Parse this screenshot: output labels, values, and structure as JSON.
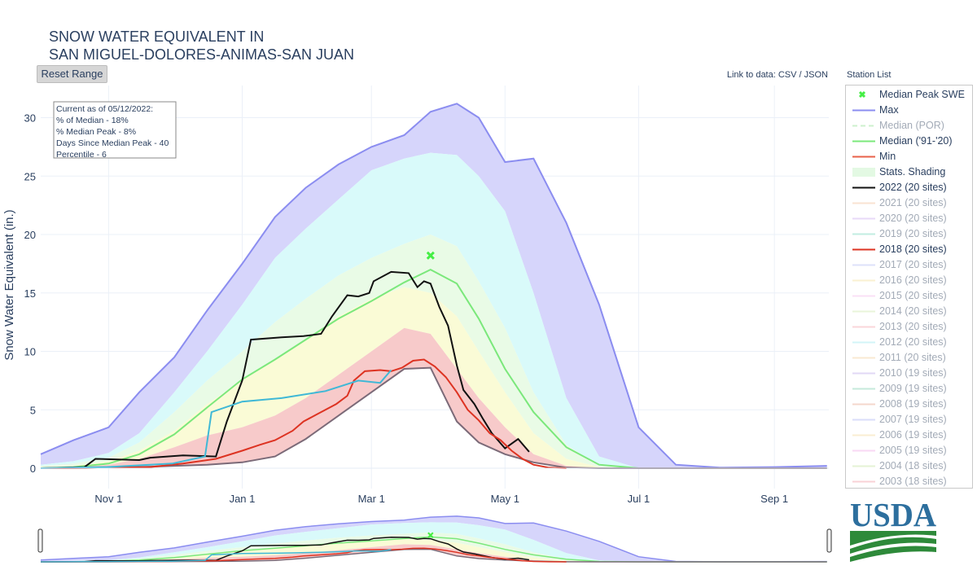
{
  "title_lines": [
    "SNOW WATER EQUIVALENT IN",
    "SAN MIGUEL-DOLORES-ANIMAS-SAN JUAN"
  ],
  "reset_label": "Reset Range",
  "data_link": {
    "prefix": "Link to data: ",
    "csv": "CSV",
    "sep": " / ",
    "json": "JSON"
  },
  "station_list_label": "Station List",
  "annotation": [
    "Current as of 05/12/2022:",
    "% of Median - 18%",
    "% Median Peak - 8%",
    "Days Since Median Peak - 40",
    "Percentile - 6"
  ],
  "logo_text": "USDA",
  "legend": [
    {
      "label": "Median Peak SWE",
      "symbol": "x",
      "color": "#44ee44",
      "visible": true
    },
    {
      "label": "Max",
      "symbol": "line",
      "color": "#8b8df0",
      "visible": true
    },
    {
      "label": "Median (POR)",
      "symbol": "dash",
      "color": "#9be59b",
      "visible": false
    },
    {
      "label": "Median ('91-'20)",
      "symbol": "line",
      "color": "#7be87b",
      "visible": true
    },
    {
      "label": "Min",
      "symbol": "line",
      "color": "#e8604a",
      "visible": true
    },
    {
      "label": "Stats. Shading",
      "symbol": "fill",
      "color": "#e3f9e3",
      "visible": true
    },
    {
      "label": "2022 (20 sites)",
      "symbol": "line",
      "color": "#111111",
      "visible": true
    },
    {
      "label": "2021 (20 sites)",
      "symbol": "line",
      "color": "#f6c9a6",
      "visible": false
    },
    {
      "label": "2020 (20 sites)",
      "symbol": "line",
      "color": "#d2b6f2",
      "visible": false
    },
    {
      "label": "2019 (20 sites)",
      "symbol": "line",
      "color": "#86dcc4",
      "visible": false
    },
    {
      "label": "2018 (20 sites)",
      "symbol": "line",
      "color": "#dd3322",
      "visible": true
    },
    {
      "label": "2017 (20 sites)",
      "symbol": "line",
      "color": "#bfc6f7",
      "visible": false
    },
    {
      "label": "2016 (20 sites)",
      "symbol": "line",
      "color": "#f7e2a6",
      "visible": false
    },
    {
      "label": "2015 (20 sites)",
      "symbol": "line",
      "color": "#f7c2ee",
      "visible": false
    },
    {
      "label": "2014 (20 sites)",
      "symbol": "line",
      "color": "#d7edb6",
      "visible": false
    },
    {
      "label": "2013 (20 sites)",
      "symbol": "line",
      "color": "#f7aeb6",
      "visible": false
    },
    {
      "label": "2012 (20 sites)",
      "symbol": "line",
      "color": "#a6eaf2",
      "visible": false
    },
    {
      "label": "2011 (20 sites)",
      "symbol": "line",
      "color": "#f7d2a6",
      "visible": false
    },
    {
      "label": "2010 (19 sites)",
      "symbol": "line",
      "color": "#c6b2ee",
      "visible": false
    },
    {
      "label": "2009 (19 sites)",
      "symbol": "line",
      "color": "#8ed6b8",
      "visible": false
    },
    {
      "label": "2008 (19 sites)",
      "symbol": "line",
      "color": "#eab09a",
      "visible": false
    },
    {
      "label": "2007 (19 sites)",
      "symbol": "line",
      "color": "#b6bcf7",
      "visible": false
    },
    {
      "label": "2006 (19 sites)",
      "symbol": "line",
      "color": "#f7dea6",
      "visible": false
    },
    {
      "label": "2005 (19 sites)",
      "symbol": "line",
      "color": "#f2b2ea",
      "visible": false
    },
    {
      "label": "2004 (18 sites)",
      "symbol": "line",
      "color": "#cde8aa",
      "visible": false
    },
    {
      "label": "2003 (18 sites)",
      "symbol": "line",
      "color": "#f4a6ae",
      "visible": false
    }
  ],
  "chart_data": {
    "type": "area",
    "title": "SNOW WATER EQUIVALENT IN SAN MIGUEL-DOLORES-ANIMAS-SAN JUAN",
    "xlabel": "",
    "ylabel": "Snow Water Equivalent (in.)",
    "x_unit": "date (water year Oct 1 - Sep 30)",
    "xlim": [
      "Oct 1",
      "Sep 30"
    ],
    "ylim": [
      -0.3,
      32.5
    ],
    "x_ticks": [
      {
        "label": "Nov 1",
        "day": 31
      },
      {
        "label": "Jan 1",
        "day": 92
      },
      {
        "label": "Mar 1",
        "day": 151
      },
      {
        "label": "May 1",
        "day": 212
      },
      {
        "label": "Jul 1",
        "day": 273
      },
      {
        "label": "Sep 1",
        "day": 335
      }
    ],
    "y_ticks": [
      0,
      5,
      10,
      15,
      20,
      25,
      30
    ],
    "grid": true,
    "legend_position": "right",
    "colors": {
      "max_fill": "#d6d5fb",
      "max_line": "#8b8df0",
      "band_high_fill": "#d9fafa",
      "band_mid_fill": "#e9fbe6",
      "band_mid_low_fill": "#fafbd6",
      "band_low_fill": "#f7caca",
      "median": "#7be87b",
      "min": "#7b6a78",
      "y2022": "#111111",
      "y2018": "#dd3322",
      "por_median": "#3fb8d6",
      "peak_marker": "#44ee44"
    },
    "median_peak": {
      "day": 178,
      "swe": 18.2
    },
    "band_series_days": [
      0,
      15,
      31,
      45,
      61,
      76,
      92,
      107,
      121,
      136,
      151,
      166,
      178,
      190,
      200,
      212,
      225,
      240,
      255,
      273,
      290,
      310,
      335,
      359
    ],
    "bands": {
      "max": [
        1.2,
        2.4,
        3.5,
        6.5,
        9.5,
        13.5,
        17.5,
        21.5,
        24.0,
        26.0,
        27.5,
        28.5,
        30.5,
        31.2,
        30.0,
        26.2,
        26.5,
        21.0,
        14.0,
        3.5,
        0.3,
        0.05,
        0.1,
        0.2
      ],
      "p90": [
        0.3,
        0.6,
        1.3,
        3.0,
        6.5,
        10.0,
        14.0,
        18.0,
        20.5,
        23.0,
        25.5,
        26.5,
        27.0,
        26.8,
        25.0,
        22.0,
        15.0,
        6.0,
        1.0,
        0.0,
        0.0,
        0.0,
        0.0,
        0.0
      ],
      "p70": [
        0.2,
        0.4,
        0.9,
        2.2,
        4.8,
        7.5,
        10.0,
        12.5,
        14.5,
        16.5,
        18.0,
        19.2,
        20.0,
        19.0,
        16.0,
        12.0,
        6.5,
        2.0,
        0.2,
        0.0,
        0.0,
        0.0,
        0.0,
        0.0
      ],
      "p50": [
        0.1,
        0.2,
        0.6,
        1.5,
        3.2,
        5.5,
        7.5,
        9.3,
        11.0,
        13.0,
        14.5,
        15.5,
        15.0,
        13.0,
        10.0,
        6.5,
        3.0,
        0.8,
        0.1,
        0.0,
        0.0,
        0.0,
        0.0,
        0.0
      ],
      "p30": [
        0.05,
        0.1,
        0.3,
        0.8,
        1.8,
        2.8,
        3.5,
        4.5,
        6.0,
        8.0,
        10.0,
        12.0,
        11.5,
        8.5,
        6.0,
        3.5,
        1.2,
        0.2,
        0.0,
        0.0,
        0.0,
        0.0,
        0.0,
        0.0
      ],
      "median": [
        0.0,
        0.1,
        0.4,
        1.2,
        2.9,
        5.2,
        7.6,
        9.3,
        11.0,
        12.8,
        14.3,
        15.9,
        17.0,
        15.8,
        12.8,
        8.5,
        4.8,
        1.8,
        0.3,
        0.0,
        0.0,
        0.0,
        0.0,
        0.0
      ],
      "min": [
        0.0,
        0.0,
        0.05,
        0.1,
        0.2,
        0.3,
        0.5,
        1.0,
        2.5,
        4.5,
        6.5,
        8.5,
        8.6,
        4.0,
        2.2,
        1.2,
        0.5,
        0.05,
        0.0,
        0.0,
        0.0,
        0.0,
        0.0,
        0.0
      ]
    },
    "series": [
      {
        "name": "2022 (20 sites)",
        "days": [
          0,
          20,
          25,
          45,
          50,
          65,
          80,
          85,
          88,
          92,
          96,
          110,
          120,
          128,
          133,
          140,
          145,
          150,
          152,
          160,
          168,
          172,
          175,
          178,
          182,
          186,
          190,
          193,
          198,
          202,
          206,
          212,
          218,
          223
        ],
        "values": [
          0,
          0.1,
          0.8,
          0.7,
          0.9,
          1.1,
          1.0,
          4.0,
          5.5,
          7.5,
          11.0,
          11.2,
          11.3,
          11.5,
          13.0,
          14.8,
          14.7,
          15.0,
          16.0,
          16.8,
          16.7,
          15.5,
          16.0,
          15.8,
          13.8,
          12.2,
          8.8,
          6.7,
          5.5,
          4.2,
          3.0,
          1.7,
          2.5,
          1.4
        ]
      },
      {
        "name": "2018 (20 sites)",
        "days": [
          0,
          20,
          50,
          65,
          80,
          92,
          100,
          107,
          115,
          120,
          128,
          135,
          140,
          143,
          148,
          155,
          160,
          165,
          170,
          175,
          180,
          185,
          190,
          195,
          200,
          205,
          210,
          215,
          220,
          225,
          232,
          240
        ],
        "values": [
          0,
          0.02,
          0.1,
          0.4,
          0.8,
          1.5,
          2.0,
          2.4,
          3.2,
          4.0,
          4.8,
          5.5,
          6.2,
          7.5,
          8.3,
          8.4,
          8.3,
          8.6,
          9.2,
          9.3,
          8.7,
          7.8,
          6.5,
          5.0,
          4.1,
          3.0,
          2.4,
          1.5,
          0.8,
          0.3,
          0.05,
          0.0
        ]
      },
      {
        "name": "Median (POR)",
        "days": [
          0,
          30,
          60,
          75,
          78,
          92,
          110,
          130,
          145,
          155,
          160
        ],
        "values": [
          0,
          0.1,
          0.4,
          1.0,
          4.8,
          5.7,
          6.0,
          6.6,
          7.5,
          7.3,
          8.4
        ]
      }
    ],
    "navigator": {
      "range_start_day": 0,
      "range_end_day": 359
    }
  }
}
